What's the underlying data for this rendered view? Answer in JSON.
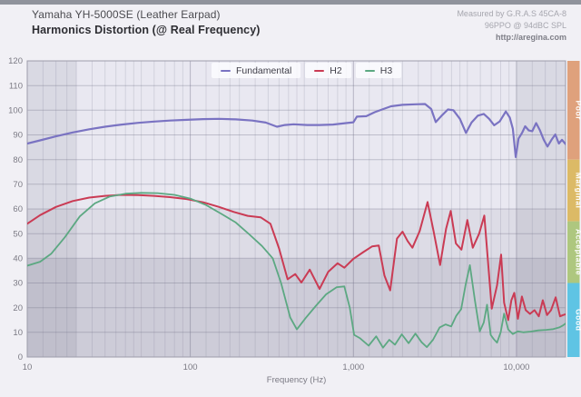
{
  "header": {
    "title_line1": "Yamaha YH-5000SE (Leather Earpad)",
    "title_line2": "Harmonics Distortion (@ Real Frequency)",
    "meta_line1": "Measured by G.R.A.S 45CA-8",
    "meta_line2": "96PPO @ 94dBC SPL",
    "meta_line3": "http://aregina.com"
  },
  "legend": {
    "items": [
      {
        "label": "Fundamental",
        "color": "#7a73c2"
      },
      {
        "label": "H2",
        "color": "#ca3b54"
      },
      {
        "label": "H3",
        "color": "#5ca882"
      }
    ]
  },
  "chart_data": {
    "type": "line",
    "x_scale": "log",
    "xlabel": "Frequency (Hz)",
    "ylabel": "",
    "xlim": [
      10,
      20000
    ],
    "ylim": [
      0,
      120
    ],
    "grid": true,
    "x_ticks": [
      {
        "value": 10,
        "label": "10"
      },
      {
        "value": 100,
        "label": "100"
      },
      {
        "value": 1000,
        "label": "1,000"
      },
      {
        "value": 10000,
        "label": "10,000"
      }
    ],
    "y_ticks": [
      {
        "value": 0,
        "label": "0"
      },
      {
        "value": 10,
        "label": "10"
      },
      {
        "value": 20,
        "label": "20"
      },
      {
        "value": 30,
        "label": "30"
      },
      {
        "value": 40,
        "label": "40"
      },
      {
        "value": 50,
        "label": "50"
      },
      {
        "value": 60,
        "label": "60"
      },
      {
        "value": 70,
        "label": "70"
      },
      {
        "value": 80,
        "label": "80"
      },
      {
        "value": 90,
        "label": "90"
      },
      {
        "value": 100,
        "label": "100"
      },
      {
        "value": 110,
        "label": "110"
      },
      {
        "value": 120,
        "label": "120"
      }
    ],
    "quality_bands": [
      {
        "label": "Poor",
        "from": 80,
        "to": 120,
        "color": "#dfa17c"
      },
      {
        "label": "Marginal",
        "from": 55,
        "to": 80,
        "color": "#dcba66"
      },
      {
        "label": "Acceptable",
        "from": 30,
        "to": 55,
        "color": "#aec77f"
      },
      {
        "label": "Good",
        "from": 0,
        "to": 30,
        "color": "#5fc4e4"
      }
    ],
    "shaded_value_stripes": [
      {
        "from": 40,
        "to": 60
      },
      {
        "from": 0,
        "to": 40
      }
    ],
    "shaded_freq_bands": [
      {
        "from": 10,
        "to": 20
      },
      {
        "from": 10000,
        "to": 20000
      }
    ],
    "style": {
      "plot_bg": "#e9e8f1",
      "stripe_light_overlay": "rgba(60,60,85,0.065)",
      "stripe_dark_overlay": "rgba(60,60,85,0.155)",
      "freq_band_overlay": "rgba(60,60,85,0.085)",
      "grid_minor": "rgba(128,126,150,0.22)",
      "grid_major": "rgba(110,108,132,0.42)",
      "grid_horizontal": "rgba(110,108,132,0.35)",
      "plot_border": "#9d9caa",
      "tick_label_color": "#7b7a84",
      "band_label_color": "#ffffff"
    },
    "series": [
      {
        "name": "Fundamental",
        "color": "#7a73c2",
        "width": 2.2,
        "points": [
          [
            10,
            86.5
          ],
          [
            12,
            87.8
          ],
          [
            15,
            89.4
          ],
          [
            19,
            91
          ],
          [
            24,
            92.3
          ],
          [
            30,
            93.3
          ],
          [
            38,
            94.2
          ],
          [
            48,
            94.9
          ],
          [
            60,
            95.4
          ],
          [
            75,
            95.8
          ],
          [
            95,
            96.1
          ],
          [
            120,
            96.4
          ],
          [
            150,
            96.5
          ],
          [
            190,
            96.3
          ],
          [
            240,
            95.8
          ],
          [
            290,
            95
          ],
          [
            340,
            93.3
          ],
          [
            380,
            94
          ],
          [
            430,
            94.3
          ],
          [
            520,
            94
          ],
          [
            620,
            94
          ],
          [
            750,
            94.2
          ],
          [
            900,
            94.8
          ],
          [
            1000,
            95.1
          ],
          [
            1050,
            97.4
          ],
          [
            1200,
            97.6
          ],
          [
            1350,
            99.2
          ],
          [
            1500,
            100.3
          ],
          [
            1700,
            101.6
          ],
          [
            2000,
            102.2
          ],
          [
            2400,
            102.4
          ],
          [
            2750,
            102.5
          ],
          [
            3000,
            100.5
          ],
          [
            3200,
            95.2
          ],
          [
            3500,
            98
          ],
          [
            3800,
            100.3
          ],
          [
            4100,
            100
          ],
          [
            4500,
            96.5
          ],
          [
            4900,
            90.8
          ],
          [
            5300,
            95
          ],
          [
            5800,
            97.8
          ],
          [
            6300,
            98.5
          ],
          [
            6800,
            96.5
          ],
          [
            7300,
            93.9
          ],
          [
            7900,
            95.5
          ],
          [
            8600,
            99.5
          ],
          [
            9100,
            97
          ],
          [
            9500,
            92.5
          ],
          [
            9900,
            81
          ],
          [
            10300,
            88.5
          ],
          [
            10800,
            90.7
          ],
          [
            11300,
            93.5
          ],
          [
            11900,
            91.8
          ],
          [
            12500,
            91.5
          ],
          [
            13200,
            94.8
          ],
          [
            13900,
            92
          ],
          [
            14700,
            88
          ],
          [
            15500,
            85.3
          ],
          [
            16400,
            88
          ],
          [
            17300,
            90.2
          ],
          [
            18200,
            86.5
          ],
          [
            19000,
            88
          ],
          [
            20000,
            86.3
          ]
        ]
      },
      {
        "name": "H2",
        "color": "#ca3b54",
        "width": 2,
        "points": [
          [
            10,
            54
          ],
          [
            12,
            57.5
          ],
          [
            15,
            60.8
          ],
          [
            19,
            63.2
          ],
          [
            24,
            64.6
          ],
          [
            30,
            65.3
          ],
          [
            38,
            65.7
          ],
          [
            48,
            65.6
          ],
          [
            60,
            65.3
          ],
          [
            75,
            64.8
          ],
          [
            95,
            64
          ],
          [
            120,
            62.7
          ],
          [
            150,
            60.8
          ],
          [
            185,
            58.8
          ],
          [
            225,
            57.2
          ],
          [
            270,
            56.6
          ],
          [
            310,
            54
          ],
          [
            350,
            44
          ],
          [
            395,
            31.5
          ],
          [
            440,
            33.6
          ],
          [
            480,
            30.2
          ],
          [
            540,
            35.4
          ],
          [
            620,
            27.6
          ],
          [
            700,
            34.5
          ],
          [
            800,
            38
          ],
          [
            880,
            36.2
          ],
          [
            1000,
            39.8
          ],
          [
            1150,
            42.5
          ],
          [
            1300,
            44.8
          ],
          [
            1430,
            45.2
          ],
          [
            1550,
            33
          ],
          [
            1680,
            27
          ],
          [
            1850,
            48
          ],
          [
            2000,
            50.8
          ],
          [
            2150,
            47
          ],
          [
            2300,
            44.3
          ],
          [
            2550,
            51
          ],
          [
            2850,
            62.8
          ],
          [
            3100,
            51
          ],
          [
            3400,
            37.3
          ],
          [
            3700,
            52
          ],
          [
            3950,
            59.2
          ],
          [
            4250,
            46
          ],
          [
            4600,
            43.5
          ],
          [
            5000,
            55.5
          ],
          [
            5400,
            44.3
          ],
          [
            5900,
            50
          ],
          [
            6350,
            57.3
          ],
          [
            6700,
            38
          ],
          [
            7050,
            19.6
          ],
          [
            7600,
            29
          ],
          [
            8050,
            41.5
          ],
          [
            8400,
            22
          ],
          [
            8900,
            15
          ],
          [
            9300,
            23
          ],
          [
            9700,
            26
          ],
          [
            10200,
            15.5
          ],
          [
            10800,
            24.5
          ],
          [
            11400,
            19
          ],
          [
            12100,
            17.5
          ],
          [
            12900,
            19
          ],
          [
            13700,
            16.5
          ],
          [
            14500,
            23
          ],
          [
            15400,
            17
          ],
          [
            16300,
            19
          ],
          [
            17400,
            24.2
          ],
          [
            18500,
            16.5
          ],
          [
            19300,
            17
          ],
          [
            20000,
            17.3
          ]
        ]
      },
      {
        "name": "H3",
        "color": "#5ca882",
        "width": 1.8,
        "points": [
          [
            10,
            37
          ],
          [
            12,
            38.6
          ],
          [
            14,
            41.8
          ],
          [
            17,
            48.5
          ],
          [
            21,
            57
          ],
          [
            26,
            62.3
          ],
          [
            32,
            65
          ],
          [
            40,
            66.2
          ],
          [
            50,
            66.5
          ],
          [
            63,
            66.4
          ],
          [
            80,
            65.7
          ],
          [
            100,
            64.2
          ],
          [
            125,
            61.6
          ],
          [
            155,
            58
          ],
          [
            190,
            54.5
          ],
          [
            230,
            49.7
          ],
          [
            275,
            45
          ],
          [
            320,
            40
          ],
          [
            360,
            30
          ],
          [
            410,
            16
          ],
          [
            450,
            11.2
          ],
          [
            510,
            15.8
          ],
          [
            590,
            20.8
          ],
          [
            680,
            25.4
          ],
          [
            790,
            28.3
          ],
          [
            880,
            28.6
          ],
          [
            950,
            20
          ],
          [
            1010,
            9
          ],
          [
            1100,
            7.6
          ],
          [
            1240,
            4.6
          ],
          [
            1380,
            8.4
          ],
          [
            1520,
            3.8
          ],
          [
            1660,
            7
          ],
          [
            1800,
            5
          ],
          [
            1980,
            9.2
          ],
          [
            2180,
            5.6
          ],
          [
            2400,
            9.5
          ],
          [
            2620,
            6
          ],
          [
            2820,
            4
          ],
          [
            3080,
            7
          ],
          [
            3380,
            12
          ],
          [
            3680,
            13.2
          ],
          [
            3980,
            12.4
          ],
          [
            4280,
            16.8
          ],
          [
            4580,
            19.4
          ],
          [
            4880,
            29.5
          ],
          [
            5180,
            37.2
          ],
          [
            5560,
            23
          ],
          [
            5960,
            10.4
          ],
          [
            6300,
            14
          ],
          [
            6600,
            21.2
          ],
          [
            6950,
            9
          ],
          [
            7250,
            7.3
          ],
          [
            7600,
            5.8
          ],
          [
            8000,
            10
          ],
          [
            8400,
            17.6
          ],
          [
            8900,
            11.2
          ],
          [
            9500,
            9.3
          ],
          [
            10200,
            10.4
          ],
          [
            11000,
            10
          ],
          [
            12200,
            10.3
          ],
          [
            13600,
            10.8
          ],
          [
            15200,
            11
          ],
          [
            16800,
            11.3
          ],
          [
            18300,
            12
          ],
          [
            19300,
            12.8
          ],
          [
            20000,
            13.6
          ]
        ]
      }
    ]
  }
}
